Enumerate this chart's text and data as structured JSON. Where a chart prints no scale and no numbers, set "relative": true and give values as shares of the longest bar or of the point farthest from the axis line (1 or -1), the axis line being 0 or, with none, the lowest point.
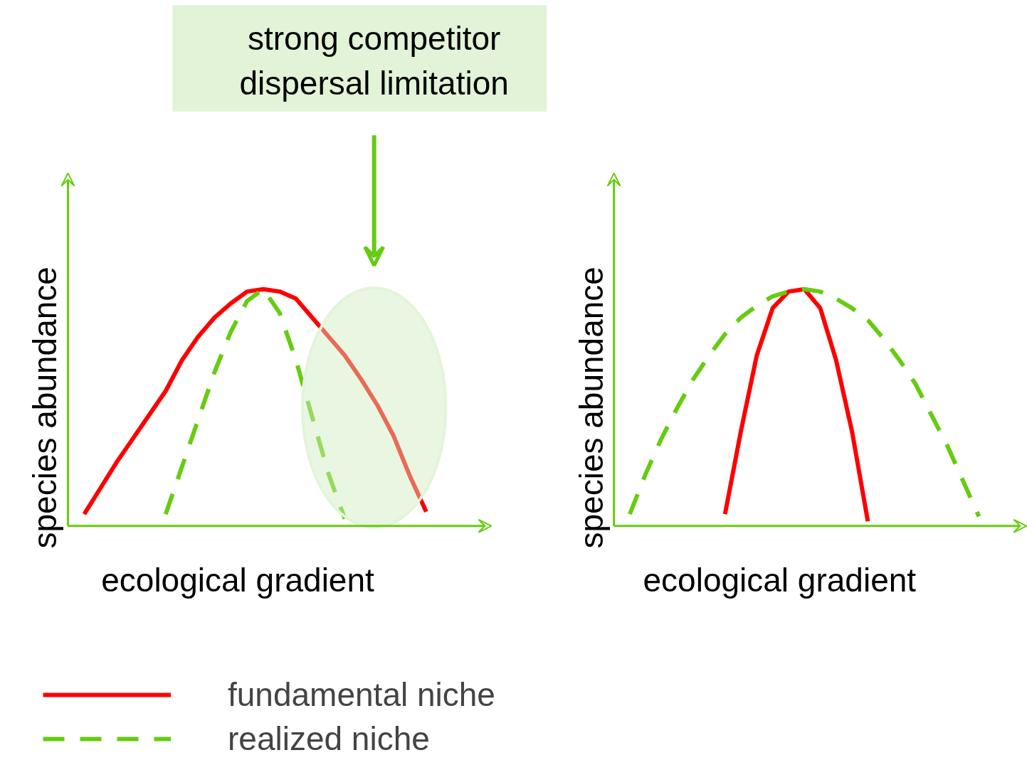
{
  "chart_data": [
    {
      "type": "line",
      "relative": true,
      "xlabel": "ecological gradient",
      "ylabel": "species abundance",
      "annotations": [
        "strong competitor",
        "dispersal limitation"
      ],
      "legend": "bottom",
      "categories": [
        null,
        null,
        null,
        null,
        null,
        null,
        null,
        null,
        null,
        null,
        null,
        null,
        null,
        null,
        null,
        null,
        null,
        null,
        null,
        null,
        null,
        null,
        null,
        null,
        null
      ],
      "series": [
        {
          "name": "fundamental niche",
          "color": "#ff0000",
          "line_style": "solid",
          "values": [
            0.05,
            0.16,
            0.27,
            0.37,
            0.47,
            0.57,
            0.7,
            0.8,
            0.88,
            0.94,
            0.99,
            1.0,
            0.99,
            0.96,
            0.88,
            0.8,
            0.72,
            0.62,
            0.51,
            0.38,
            0.21,
            0.06,
            null,
            null,
            null
          ]
        },
        {
          "name": "realized niche",
          "color": "#66cc11",
          "line_style": "dashed",
          "values": [
            null,
            null,
            null,
            null,
            null,
            0.05,
            0.25,
            0.45,
            0.65,
            0.82,
            0.95,
            1.0,
            0.9,
            0.7,
            0.46,
            0.22,
            0.03,
            null,
            null,
            null,
            null,
            null,
            null,
            null,
            null
          ]
        }
      ]
    },
    {
      "type": "line",
      "relative": true,
      "xlabel": "ecological gradient",
      "ylabel": "species abundance",
      "categories": [
        null,
        null,
        null,
        null,
        null,
        null,
        null,
        null,
        null,
        null,
        null,
        null,
        null,
        null,
        null,
        null,
        null,
        null,
        null,
        null,
        null,
        null,
        null,
        null,
        null
      ],
      "series": [
        {
          "color": "#ff0000",
          "line_style": "solid",
          "values": [
            null,
            null,
            null,
            null,
            null,
            null,
            0.05,
            0.4,
            0.72,
            0.92,
            0.99,
            1.0,
            0.92,
            0.7,
            0.4,
            0.02,
            null,
            null,
            null,
            null,
            null,
            null,
            null,
            null,
            null
          ]
        },
        {
          "color": "#66cc11",
          "line_style": "dashed",
          "values": [
            0.05,
            0.22,
            0.37,
            0.5,
            0.62,
            0.72,
            0.81,
            0.88,
            0.93,
            0.97,
            0.99,
            1.0,
            0.99,
            0.96,
            0.92,
            0.87,
            0.79,
            0.7,
            0.6,
            0.47,
            0.34,
            0.19,
            0.04,
            null,
            null
          ]
        }
      ]
    }
  ]
}
